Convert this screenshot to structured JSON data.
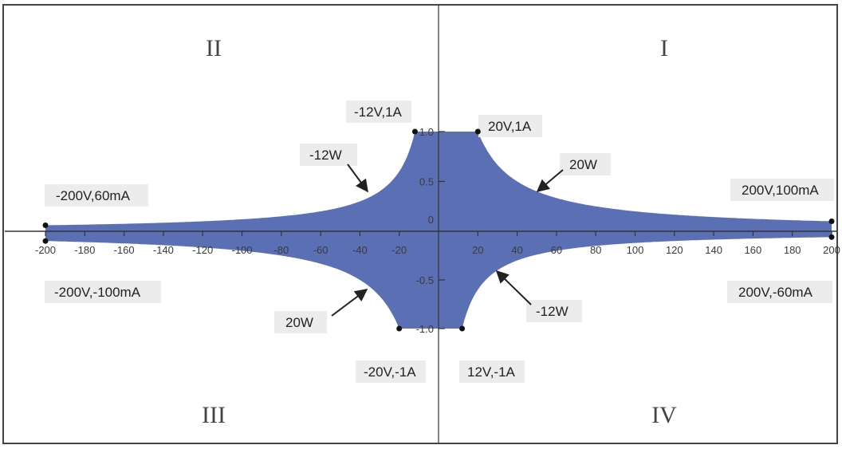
{
  "chart_data": {
    "type": "area",
    "title": "",
    "xlabel": "",
    "ylabel": "",
    "xlim": [
      -200,
      200
    ],
    "ylim": [
      -1.0,
      1.0
    ],
    "x_ticks": [
      -200,
      -180,
      -160,
      -140,
      -120,
      -100,
      -80,
      -60,
      -40,
      -20,
      20,
      40,
      60,
      80,
      100,
      120,
      140,
      160,
      180,
      200
    ],
    "y_ticks": [
      {
        "value": 1.0,
        "label": "1.0"
      },
      {
        "value": 0.5,
        "label": "0.5"
      },
      {
        "value": 0,
        "label": "0"
      },
      {
        "value": -0.5,
        "label": "-0.5"
      },
      {
        "value": -1.0,
        "label": "-1.0"
      }
    ],
    "fill_color": "#5b6fb4",
    "quadrants": [
      "I",
      "II",
      "III",
      "IV"
    ],
    "boundary_upper": [
      {
        "x": -200,
        "y": 0.06
      },
      {
        "x": -12,
        "y": 1.0
      },
      {
        "x": 20,
        "y": 1.0
      },
      {
        "x": 200,
        "y": 0.1
      }
    ],
    "boundary_lower": [
      {
        "x": -200,
        "y": -0.1
      },
      {
        "x": -20,
        "y": -1.0
      },
      {
        "x": 12,
        "y": -1.0
      },
      {
        "x": 200,
        "y": -0.06
      }
    ],
    "power_limits": {
      "q1_watts": 20,
      "q2_watts": -12,
      "q3_watts": 20,
      "q4_watts": -12
    },
    "corner_points": [
      {
        "x": -200,
        "y": 0.06,
        "label": "-200V,60mA"
      },
      {
        "x": -200,
        "y": -0.1,
        "label": "-200V,-100mA"
      },
      {
        "x": 200,
        "y": 0.1,
        "label": "200V,100mA"
      },
      {
        "x": 200,
        "y": -0.06,
        "label": "200V,-60mA"
      },
      {
        "x": -12,
        "y": 1.0,
        "label": "-12V,1A"
      },
      {
        "x": 20,
        "y": 1.0,
        "label": "20V,1A"
      },
      {
        "x": -20,
        "y": -1.0,
        "label": "-20V,-1A"
      },
      {
        "x": 12,
        "y": -1.0,
        "label": "12V,-1A"
      }
    ],
    "annotations": [
      {
        "text": "-12W",
        "quadrant": "II"
      },
      {
        "text": "20W",
        "quadrant": "I"
      },
      {
        "text": "20W",
        "quadrant": "III"
      },
      {
        "text": "-12W",
        "quadrant": "IV"
      }
    ]
  }
}
